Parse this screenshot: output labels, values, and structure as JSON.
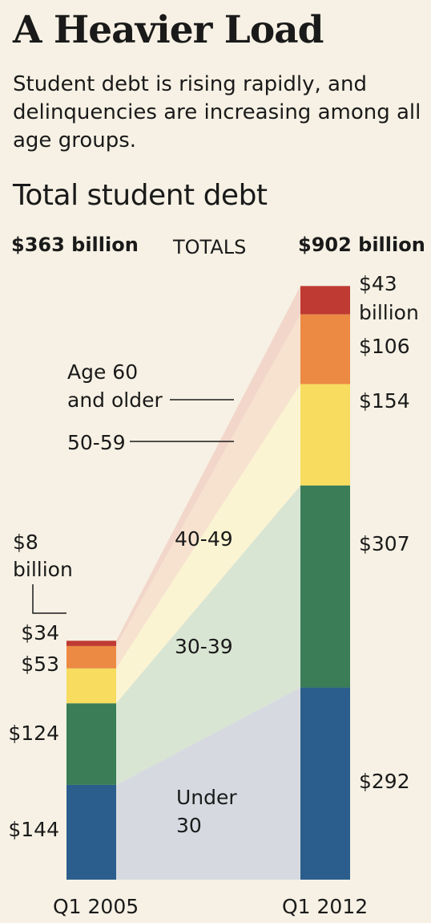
{
  "headline": "A Heavier Load",
  "deck": "Student debt is rising rapidly, and delinquencies are increasing among all age groups.",
  "chart_data": {
    "type": "bar",
    "title": "Total student debt",
    "totals_label": "TOTALS",
    "categories": [
      "Q1 2005",
      "Q1 2012"
    ],
    "totals": [
      "$363 billion",
      "$902 billion"
    ],
    "units": "billion",
    "series": [
      {
        "name": "Under 30",
        "values": [
          144,
          292
        ],
        "labels": [
          "$144",
          "$292"
        ],
        "color": "#2b5e8c",
        "band_color": "#d6dae0"
      },
      {
        "name": "30-39",
        "values": [
          124,
          307
        ],
        "labels": [
          "$124",
          "$307"
        ],
        "color": "#3a7d57",
        "band_color": "#d9e5d3"
      },
      {
        "name": "40-49",
        "values": [
          53,
          154
        ],
        "labels": [
          "$53",
          "$154"
        ],
        "color": "#f7dc5f",
        "band_color": "#fbf4d2"
      },
      {
        "name": "50-59",
        "values": [
          34,
          106
        ],
        "labels": [
          "$34",
          "$106"
        ],
        "color": "#ec8a43",
        "band_color": "#f6e2cf"
      },
      {
        "name": "Age 60 and older",
        "values": [
          8,
          43
        ],
        "labels": [
          "$8 billion",
          "$43 billion"
        ],
        "color": "#bf3a33",
        "band_color": "#f2d6c9"
      }
    ],
    "grid": false,
    "legend": "inline callouts"
  }
}
